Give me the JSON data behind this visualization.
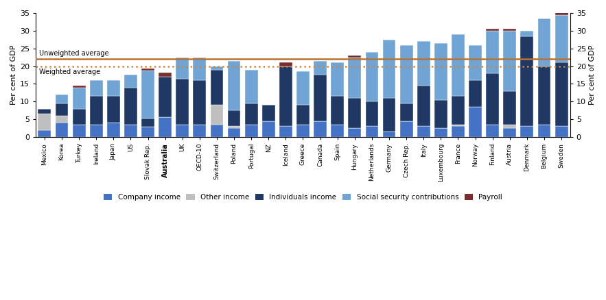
{
  "countries": [
    "Mexico",
    "Korea",
    "Turkey",
    "Ireland",
    "Japan",
    "US",
    "Slovak Rep.",
    "Australia",
    "UK",
    "OECD-10",
    "Switzerland",
    "Poland",
    "Portugal",
    "NZ",
    "Iceland",
    "Greece",
    "Canada",
    "Spain",
    "Hungary",
    "Netherlands",
    "Germany",
    "Czech Rep.",
    "Italy",
    "Luxembourg",
    "France",
    "Norway",
    "Finland",
    "Austria",
    "Denmark",
    "Belgium",
    "Sweden"
  ],
  "company_income": [
    2.0,
    4.0,
    3.5,
    3.5,
    4.0,
    3.5,
    2.8,
    5.5,
    3.5,
    3.5,
    3.5,
    2.5,
    3.5,
    4.5,
    3.0,
    3.5,
    4.5,
    3.5,
    2.5,
    3.0,
    1.5,
    4.5,
    3.0,
    2.5,
    3.0,
    8.5,
    3.5,
    2.5,
    3.0,
    3.5,
    3.0
  ],
  "other_income": [
    4.5,
    2.0,
    0.0,
    0.0,
    0.0,
    0.0,
    0.0,
    0.0,
    0.0,
    0.0,
    5.5,
    0.5,
    0.0,
    0.0,
    0.0,
    0.0,
    0.0,
    0.0,
    0.0,
    0.0,
    0.0,
    0.0,
    0.0,
    0.0,
    0.5,
    0.0,
    0.0,
    1.0,
    0.0,
    0.0,
    0.0
  ],
  "individuals_income": [
    1.5,
    3.5,
    4.5,
    8.0,
    7.5,
    10.5,
    2.5,
    11.5,
    13.0,
    12.5,
    10.0,
    4.5,
    6.0,
    4.5,
    17.0,
    5.5,
    13.0,
    8.0,
    8.5,
    7.0,
    9.5,
    5.0,
    11.5,
    8.0,
    8.0,
    7.5,
    14.5,
    9.5,
    25.5,
    16.5,
    18.0
  ],
  "social_security": [
    0.0,
    2.5,
    6.0,
    4.5,
    4.5,
    3.5,
    13.5,
    0.0,
    6.0,
    6.5,
    1.0,
    14.0,
    9.5,
    0.0,
    0.0,
    9.5,
    4.0,
    9.5,
    11.5,
    14.0,
    16.5,
    16.5,
    12.5,
    16.0,
    17.5,
    10.0,
    12.0,
    17.0,
    1.5,
    13.5,
    13.5
  ],
  "payroll": [
    0.0,
    0.0,
    0.5,
    0.0,
    0.0,
    0.0,
    0.5,
    1.2,
    0.0,
    0.0,
    0.0,
    0.0,
    0.0,
    0.0,
    1.0,
    0.0,
    0.0,
    0.0,
    0.5,
    0.0,
    0.0,
    0.0,
    0.0,
    0.0,
    0.0,
    0.0,
    0.5,
    0.5,
    0.0,
    0.0,
    2.5
  ],
  "unweighted_avg": 22.1,
  "weighted_avg": 19.9,
  "color_company": "#4472C4",
  "color_other": "#BFBFBF",
  "color_individuals": "#1F3864",
  "color_social": "#70A4D4",
  "color_payroll": "#7B2C2C",
  "color_unweighted_line": "#B87333",
  "color_weighted_dot": "#D4863A",
  "ylim_max": 35,
  "yticks": [
    0,
    5,
    10,
    15,
    20,
    25,
    30,
    35
  ],
  "ylabel": "Per cent of GDP",
  "unweighted_label": "Unweighted average",
  "weighted_label": "Weighted average"
}
